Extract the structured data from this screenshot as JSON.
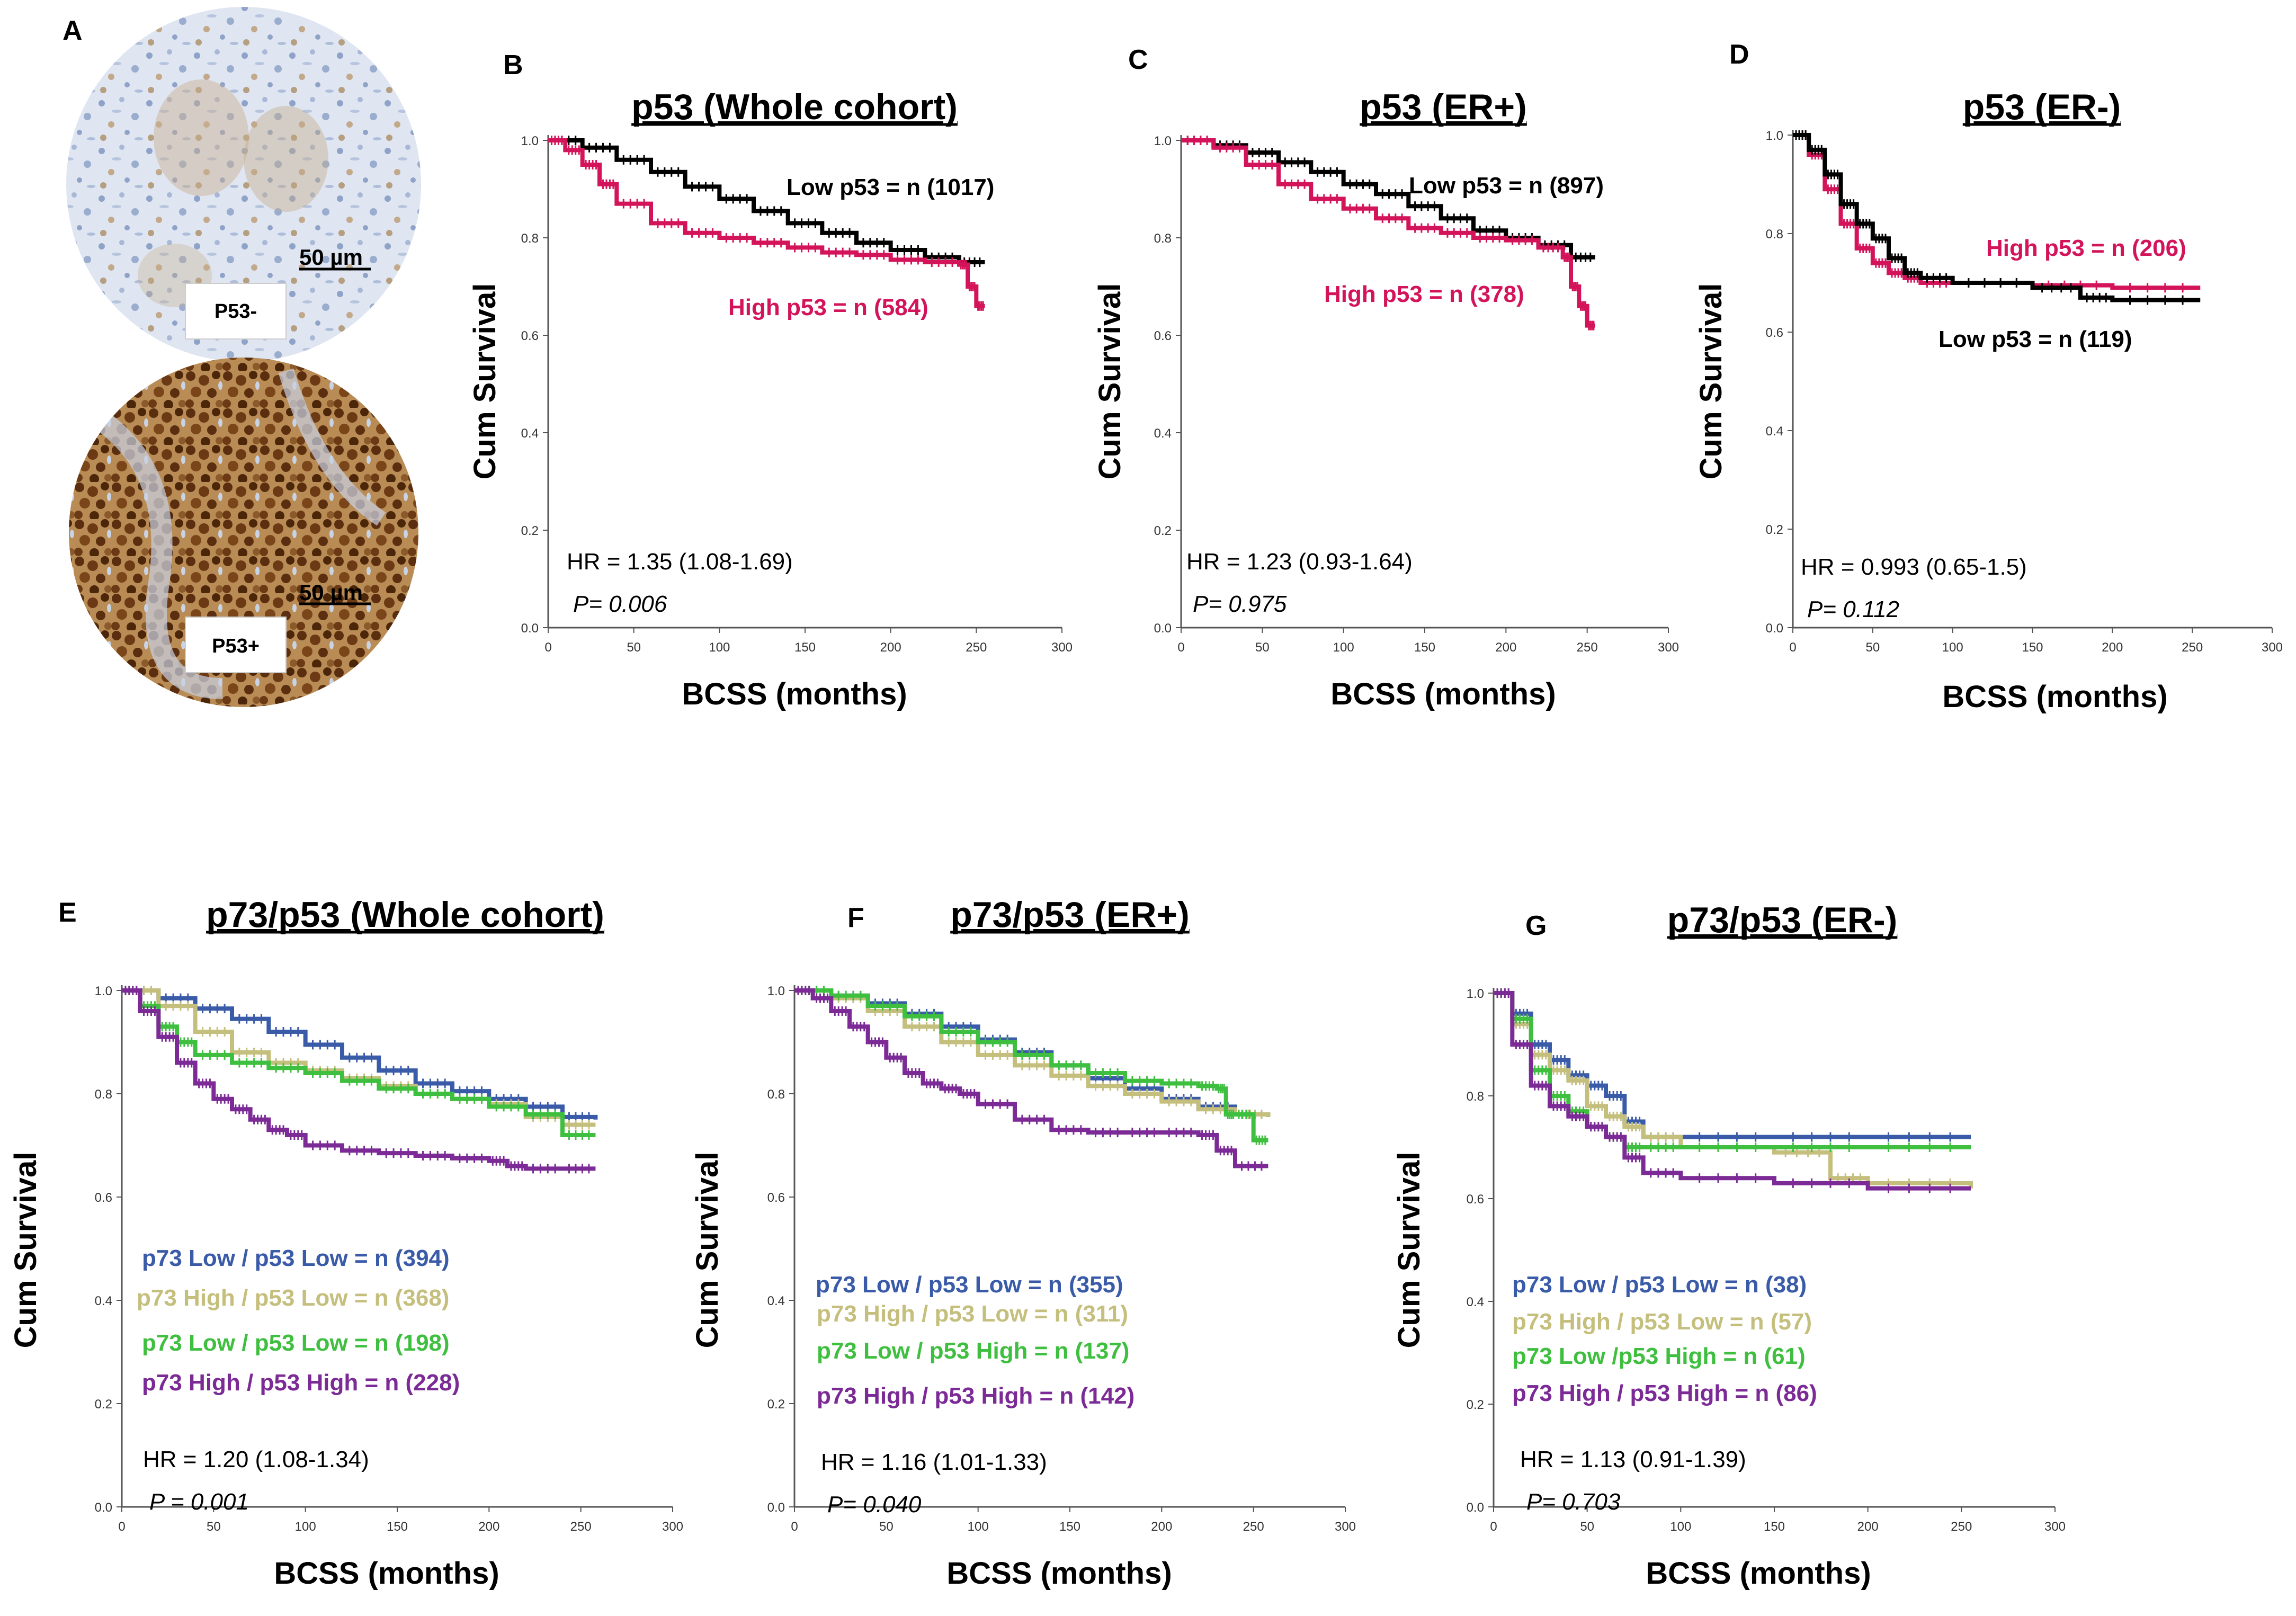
{
  "panel_a": {
    "letter": "A",
    "samples": [
      {
        "label": "P53-",
        "scale_bar": "50 µm"
      },
      {
        "label": "P53+",
        "scale_bar": "50 µm"
      }
    ]
  },
  "colors": {
    "low_p53": "#000000",
    "high_p53": "#d4145a",
    "p73low_p53low": "#3a5ba8",
    "p73high_p53low": "#c5bf7e",
    "p73low_p53high": "#3fbf3f",
    "p73high_p53high": "#7b2a96"
  },
  "chart_data": [
    {
      "id": "B",
      "letter": "B",
      "type": "line",
      "title": "p53 (Whole cohort)",
      "xlabel": "BCSS (months)",
      "ylabel": "Cum Survival",
      "xlim": [
        0,
        300
      ],
      "ylim": [
        0.0,
        1.0
      ],
      "xticks": [
        "0",
        "50",
        "100",
        "150",
        "200",
        "250",
        "300"
      ],
      "yticks": [
        "0.0",
        "0.2",
        "0.4",
        "0.6",
        "0.8",
        "1.0"
      ],
      "hr": "HR = 1.35 (1.08-1.69)",
      "p": "P= 0.006",
      "series": [
        {
          "name": "Low p53 = n (1017)",
          "color_key": "low_p53",
          "x": [
            0,
            20,
            40,
            60,
            80,
            100,
            120,
            140,
            160,
            180,
            200,
            220,
            240,
            255
          ],
          "y": [
            1.0,
            0.985,
            0.96,
            0.935,
            0.905,
            0.88,
            0.855,
            0.83,
            0.81,
            0.79,
            0.775,
            0.76,
            0.75,
            0.75
          ]
        },
        {
          "name": "High p53 = n (584)",
          "color_key": "high_p53",
          "x": [
            0,
            10,
            20,
            30,
            40,
            60,
            80,
            100,
            120,
            140,
            160,
            180,
            200,
            220,
            240,
            245,
            250,
            255
          ],
          "y": [
            1.0,
            0.98,
            0.95,
            0.91,
            0.87,
            0.83,
            0.81,
            0.8,
            0.79,
            0.78,
            0.77,
            0.765,
            0.755,
            0.75,
            0.745,
            0.7,
            0.66,
            0.66
          ]
        }
      ]
    },
    {
      "id": "C",
      "letter": "C",
      "type": "line",
      "title": "p53 (ER+)",
      "xlabel": "BCSS (months)",
      "ylabel": "Cum Survival",
      "xlim": [
        0,
        300
      ],
      "ylim": [
        0.0,
        1.0
      ],
      "xticks": [
        "0",
        "50",
        "100",
        "150",
        "200",
        "250",
        "300"
      ],
      "yticks": [
        "0.0",
        "0.2",
        "0.4",
        "0.6",
        "0.8",
        "1.0"
      ],
      "hr": "HR = 1.23 (0.93-1.64)",
      "p": "P= 0.975",
      "series": [
        {
          "name": "Low p53 = n (897)",
          "color_key": "low_p53",
          "x": [
            0,
            20,
            40,
            60,
            80,
            100,
            120,
            140,
            160,
            180,
            200,
            220,
            240,
            255
          ],
          "y": [
            1.0,
            0.99,
            0.975,
            0.955,
            0.935,
            0.91,
            0.89,
            0.865,
            0.84,
            0.815,
            0.8,
            0.785,
            0.76,
            0.76
          ]
        },
        {
          "name": "High p53 = n (378)",
          "color_key": "high_p53",
          "x": [
            0,
            20,
            40,
            60,
            80,
            100,
            120,
            140,
            160,
            180,
            200,
            220,
            235,
            240,
            245,
            250,
            255
          ],
          "y": [
            1.0,
            0.985,
            0.95,
            0.91,
            0.88,
            0.86,
            0.84,
            0.82,
            0.81,
            0.8,
            0.795,
            0.78,
            0.76,
            0.7,
            0.66,
            0.62,
            0.62
          ]
        }
      ]
    },
    {
      "id": "D",
      "letter": "D",
      "type": "line",
      "title": "p53 (ER-)",
      "xlabel": "BCSS (months)",
      "ylabel": "Cum Survival",
      "xlim": [
        0,
        300
      ],
      "ylim": [
        0.0,
        1.0
      ],
      "xticks": [
        "0",
        "50",
        "100",
        "150",
        "200",
        "250",
        "300"
      ],
      "yticks": [
        "0.0",
        "0.2",
        "0.4",
        "0.6",
        "0.8",
        "1.0"
      ],
      "hr": "HR = 0.993 (0.65-1.5)",
      "p": "P= 0.112",
      "series": [
        {
          "name": "High p53 = n (206)",
          "color_key": "high_p53",
          "x": [
            0,
            10,
            20,
            30,
            40,
            50,
            60,
            70,
            80,
            100,
            150,
            200,
            255
          ],
          "y": [
            1.0,
            0.96,
            0.89,
            0.82,
            0.77,
            0.74,
            0.72,
            0.71,
            0.7,
            0.7,
            0.695,
            0.69,
            0.69
          ]
        },
        {
          "name": "Low p53 = n (119)",
          "color_key": "low_p53",
          "x": [
            0,
            10,
            20,
            30,
            40,
            50,
            60,
            70,
            80,
            100,
            150,
            180,
            200,
            255
          ],
          "y": [
            1.0,
            0.97,
            0.92,
            0.86,
            0.82,
            0.79,
            0.75,
            0.72,
            0.71,
            0.7,
            0.69,
            0.67,
            0.665,
            0.665
          ]
        }
      ]
    },
    {
      "id": "E",
      "letter": "E",
      "type": "line",
      "title": "p73/p53 (Whole cohort)",
      "xlabel": "BCSS (months)",
      "ylabel": "Cum Survival",
      "xlim": [
        0,
        300
      ],
      "ylim": [
        0.0,
        1.0
      ],
      "xticks": [
        "0",
        "50",
        "100",
        "150",
        "200",
        "250",
        "300"
      ],
      "yticks": [
        "0.0",
        "0.2",
        "0.4",
        "0.6",
        "0.8",
        "1.0"
      ],
      "hr": "HR = 1.20 (1.08-1.34)",
      "p": "P = 0.001",
      "series": [
        {
          "name": "p73 Low / p53 Low = n (394)",
          "color_key": "p73low_p53low",
          "x": [
            0,
            20,
            40,
            60,
            80,
            100,
            120,
            140,
            160,
            180,
            200,
            220,
            240,
            258
          ],
          "y": [
            1.0,
            0.985,
            0.965,
            0.945,
            0.92,
            0.895,
            0.87,
            0.845,
            0.82,
            0.805,
            0.79,
            0.775,
            0.755,
            0.75
          ]
        },
        {
          "name": "p73 High / p53 Low = n (368)",
          "color_key": "p73high_p53low",
          "x": [
            0,
            20,
            40,
            60,
            80,
            100,
            120,
            140,
            160,
            180,
            200,
            220,
            240,
            258
          ],
          "y": [
            1.0,
            0.97,
            0.92,
            0.88,
            0.86,
            0.845,
            0.83,
            0.815,
            0.8,
            0.79,
            0.78,
            0.755,
            0.74,
            0.74
          ]
        },
        {
          "name": "p73 Low / p53 Low = n (198)",
          "color_key": "p73low_p53high",
          "x": [
            0,
            10,
            20,
            30,
            40,
            60,
            80,
            100,
            120,
            140,
            160,
            180,
            200,
            220,
            240,
            258
          ],
          "y": [
            1.0,
            0.97,
            0.93,
            0.9,
            0.875,
            0.86,
            0.85,
            0.84,
            0.825,
            0.81,
            0.8,
            0.79,
            0.775,
            0.76,
            0.72,
            0.72
          ]
        },
        {
          "name": "p73 High / p53 High = n (228)",
          "color_key": "p73high_p53high",
          "x": [
            0,
            10,
            20,
            30,
            40,
            50,
            60,
            70,
            80,
            90,
            100,
            120,
            140,
            160,
            180,
            200,
            210,
            220,
            240,
            258
          ],
          "y": [
            1.0,
            0.96,
            0.91,
            0.86,
            0.82,
            0.79,
            0.77,
            0.75,
            0.73,
            0.72,
            0.7,
            0.69,
            0.685,
            0.68,
            0.675,
            0.67,
            0.66,
            0.655,
            0.655,
            0.655
          ]
        }
      ]
    },
    {
      "id": "F",
      "letter": "F",
      "type": "line",
      "title": "p73/p53 (ER+)",
      "xlabel": "BCSS (months)",
      "ylabel": "Cum Survival",
      "xlim": [
        0,
        300
      ],
      "ylim": [
        0.0,
        1.0
      ],
      "xticks": [
        "0",
        "50",
        "100",
        "150",
        "200",
        "250",
        "300"
      ],
      "yticks": [
        "0.0",
        "0.2",
        "0.4",
        "0.6",
        "0.8",
        "1.0"
      ],
      "hr": "HR = 1.16 (1.01-1.33)",
      "p": "P= 0.040",
      "series": [
        {
          "name": "p73 Low / p53 Low = n (355)",
          "color_key": "p73low_p53low",
          "x": [
            0,
            20,
            40,
            60,
            80,
            100,
            120,
            140,
            160,
            180,
            200,
            220,
            240,
            258
          ],
          "y": [
            1.0,
            0.99,
            0.975,
            0.955,
            0.93,
            0.905,
            0.88,
            0.855,
            0.83,
            0.81,
            0.79,
            0.775,
            0.76,
            0.755
          ]
        },
        {
          "name": "p73 High / p53 Low = n (311)",
          "color_key": "p73high_p53low",
          "x": [
            0,
            20,
            40,
            60,
            80,
            100,
            120,
            140,
            160,
            180,
            200,
            220,
            240,
            258
          ],
          "y": [
            1.0,
            0.985,
            0.96,
            0.93,
            0.9,
            0.875,
            0.855,
            0.835,
            0.815,
            0.8,
            0.785,
            0.77,
            0.76,
            0.755
          ]
        },
        {
          "name": "p73 Low / p53 High = n (137)",
          "color_key": "p73low_p53high",
          "x": [
            0,
            20,
            40,
            60,
            80,
            100,
            120,
            140,
            160,
            180,
            200,
            220,
            230,
            235,
            240,
            250,
            258
          ],
          "y": [
            1.0,
            0.99,
            0.97,
            0.95,
            0.92,
            0.9,
            0.875,
            0.855,
            0.84,
            0.825,
            0.82,
            0.815,
            0.81,
            0.76,
            0.76,
            0.71,
            0.71
          ]
        },
        {
          "name": "p73 High / p53 High = n (142)",
          "color_key": "p73high_p53high",
          "x": [
            0,
            10,
            20,
            30,
            40,
            50,
            60,
            70,
            80,
            90,
            100,
            120,
            140,
            160,
            180,
            200,
            220,
            230,
            240,
            258
          ],
          "y": [
            1.0,
            0.985,
            0.96,
            0.93,
            0.9,
            0.87,
            0.84,
            0.82,
            0.81,
            0.8,
            0.78,
            0.75,
            0.73,
            0.725,
            0.725,
            0.725,
            0.72,
            0.69,
            0.66,
            0.66
          ]
        }
      ]
    },
    {
      "id": "G",
      "letter": "G",
      "type": "line",
      "title": "p73/p53 (ER-)",
      "xlabel": "BCSS (months)",
      "ylabel": "Cum Survival",
      "xlim": [
        0,
        300
      ],
      "ylim": [
        0.0,
        1.0
      ],
      "xticks": [
        "0",
        "50",
        "100",
        "150",
        "200",
        "250",
        "300"
      ],
      "yticks": [
        "0.0",
        "0.2",
        "0.4",
        "0.6",
        "0.8",
        "1.0"
      ],
      "hr": "HR = 1.13 (0.91-1.39)",
      "p": "P= 0.703",
      "series": [
        {
          "name": "p73 Low / p53 Low = n (38)",
          "color_key": "p73low_p53low",
          "x": [
            0,
            10,
            20,
            30,
            40,
            50,
            60,
            70,
            80,
            100,
            150,
            200,
            255
          ],
          "y": [
            1.0,
            0.96,
            0.9,
            0.87,
            0.84,
            0.82,
            0.8,
            0.75,
            0.72,
            0.72,
            0.72,
            0.72,
            0.72
          ]
        },
        {
          "name": "p73 High / p53 Low = n (57)",
          "color_key": "p73high_p53low",
          "x": [
            0,
            10,
            20,
            30,
            40,
            50,
            60,
            70,
            80,
            100,
            150,
            180,
            200,
            255
          ],
          "y": [
            1.0,
            0.94,
            0.88,
            0.85,
            0.83,
            0.78,
            0.76,
            0.74,
            0.72,
            0.7,
            0.69,
            0.64,
            0.63,
            0.62
          ]
        },
        {
          "name": "p73 Low /p53 High = n (61)",
          "color_key": "p73low_p53high",
          "x": [
            0,
            10,
            20,
            30,
            40,
            50,
            60,
            70,
            80,
            100,
            150,
            200,
            255
          ],
          "y": [
            1.0,
            0.95,
            0.85,
            0.8,
            0.77,
            0.74,
            0.72,
            0.7,
            0.7,
            0.7,
            0.7,
            0.7,
            0.7
          ]
        },
        {
          "name": "p73 High / p53 High = n (86)",
          "color_key": "p73high_p53high",
          "x": [
            0,
            10,
            20,
            30,
            40,
            50,
            60,
            70,
            80,
            100,
            150,
            200,
            255
          ],
          "y": [
            1.0,
            0.9,
            0.82,
            0.78,
            0.76,
            0.74,
            0.72,
            0.68,
            0.65,
            0.64,
            0.63,
            0.62,
            0.62
          ]
        }
      ]
    }
  ]
}
